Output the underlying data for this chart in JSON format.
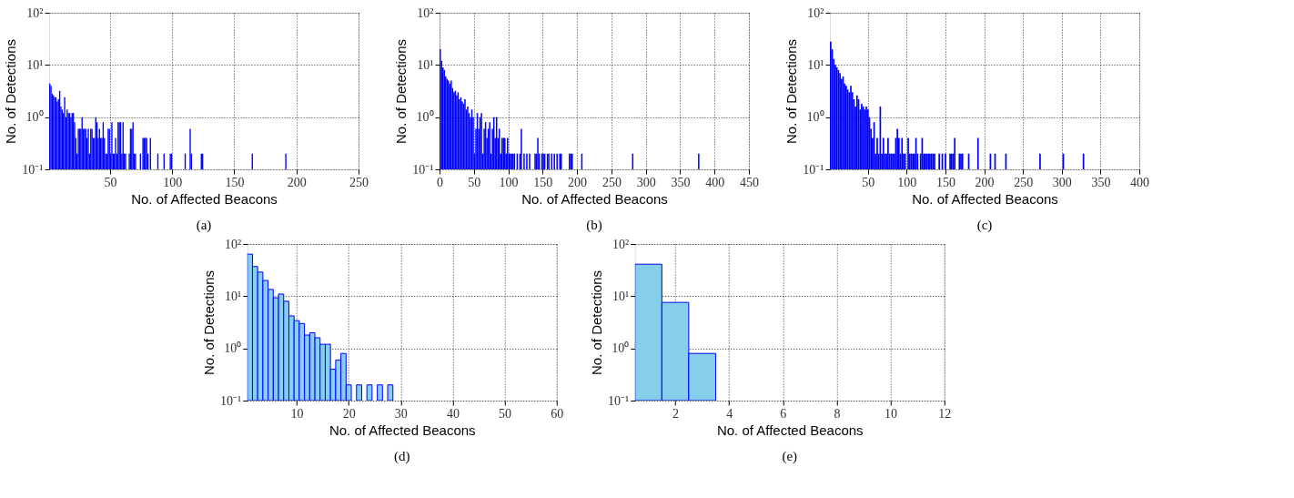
{
  "chart_data": [
    {
      "type": "histogram",
      "title": "(a)",
      "xlabel": "No. of Affected Beacons",
      "ylabel": "No. of Detections",
      "color": "#0000ff",
      "log": true,
      "grid": true,
      "xlim": [
        1,
        250
      ],
      "xticks": [
        50,
        100,
        150,
        200,
        250
      ],
      "ylim": [
        0.1,
        100
      ],
      "yticks": [
        {
          "value": 0.1,
          "label": "10⁻¹"
        },
        {
          "value": 1,
          "label": "10⁰"
        },
        {
          "value": 10,
          "label": "10¹"
        },
        {
          "value": 100,
          "label": "10²"
        }
      ],
      "bins": [
        1,
        2,
        3,
        4,
        5,
        6,
        7,
        8,
        9,
        10,
        11,
        12,
        13,
        14,
        15,
        16,
        17,
        18,
        19,
        20,
        21,
        22,
        23,
        24,
        25,
        26,
        27,
        28,
        29,
        30,
        31,
        32,
        33,
        34,
        35,
        36,
        37,
        38,
        39,
        40,
        41,
        42,
        43,
        44,
        45,
        46,
        47,
        48,
        49,
        50,
        51,
        52,
        53,
        54,
        55,
        56,
        57,
        58,
        59,
        60,
        61,
        62,
        63,
        64,
        65,
        66,
        67,
        68,
        69,
        70,
        71,
        72,
        73,
        74,
        75,
        76,
        77,
        78,
        79,
        80,
        81,
        82,
        83,
        84,
        85,
        86,
        87,
        88,
        89,
        90,
        91,
        92,
        93,
        94,
        95,
        96,
        97,
        98,
        99,
        100,
        101,
        102,
        103,
        104,
        105,
        106,
        107,
        108,
        109,
        110,
        111,
        112,
        113,
        114,
        115,
        116,
        117,
        118,
        119,
        120,
        121,
        122,
        123,
        124,
        125,
        126,
        127,
        128,
        129,
        130,
        131,
        132,
        133,
        134,
        135,
        136,
        137,
        138,
        139,
        140,
        141,
        142,
        143,
        144,
        145,
        146,
        147,
        148,
        149,
        150,
        151,
        152,
        153,
        154,
        155,
        156,
        157,
        158,
        159,
        160,
        161,
        162,
        163,
        164,
        165,
        166,
        167,
        168,
        169,
        170,
        171,
        172,
        173,
        174,
        175,
        176,
        177,
        178,
        179,
        180,
        181,
        182,
        183,
        184,
        185,
        186,
        187,
        188,
        189,
        190,
        191,
        192
      ],
      "values": [
        4.4,
        4.0,
        2.8,
        2.6,
        2.4,
        2.4,
        2.0,
        2.2,
        3.2,
        1.6,
        1.4,
        1.2,
        2.4,
        1.0,
        1.4,
        1.2,
        1.2,
        1.0,
        1.2,
        1.2,
        0.8,
        0.4,
        0.2,
        0.6,
        0.6,
        0.6,
        1.0,
        0.6,
        0.6,
        0.6,
        0.4,
        0.6,
        0.2,
        0.6,
        0.6,
        0.4,
        0.4,
        1.0,
        0.8,
        0.4,
        0.6,
        0.4,
        0.4,
        0.8,
        0.4,
        0.2,
        0.2,
        0.6,
        0.6,
        0.2,
        0.8,
        0.2,
        0.2,
        0.4,
        0.2,
        0.8,
        0.8,
        0.8,
        0.2,
        0.8,
        0.2,
        0.2,
        null,
        null,
        0.2,
        0.6,
        0.6,
        0.8,
        0.2,
        0.2,
        null,
        null,
        null,
        0.2,
        null,
        0.4,
        0.4,
        0.4,
        0.4,
        0.2,
        null,
        0.4,
        null,
        null,
        null,
        null,
        null,
        0.2,
        null,
        null,
        null,
        null,
        0.2,
        null,
        null,
        null,
        null,
        0.2,
        0.2,
        null,
        null,
        null,
        null,
        null,
        null,
        null,
        null,
        null,
        null,
        0.2,
        null,
        null,
        null,
        0.6,
        0.2,
        null,
        null,
        null,
        null,
        null,
        null,
        null,
        0.2,
        0.2,
        null,
        null,
        null,
        null,
        null,
        null,
        null,
        null,
        null,
        null,
        null,
        null,
        null,
        null,
        null,
        null,
        null,
        null,
        null,
        null,
        null,
        null,
        null,
        null,
        null,
        null,
        null,
        null,
        null,
        null,
        null,
        null,
        null,
        null,
        null,
        null,
        null,
        null,
        null,
        0.2,
        null,
        null,
        null,
        null,
        null,
        null,
        null,
        null,
        null,
        null,
        null,
        null,
        null,
        null,
        null,
        null,
        null,
        null,
        null,
        null,
        null,
        null,
        null,
        null,
        null,
        null,
        0.2
      ]
    },
    {
      "type": "histogram",
      "title": "(b)",
      "xlabel": "No. of Affected Beacons",
      "ylabel": "No. of Detections",
      "color": "#0000ff",
      "log": true,
      "grid": true,
      "xlim": [
        0,
        450
      ],
      "xticks": [
        0,
        50,
        100,
        150,
        200,
        250,
        300,
        350,
        400,
        450
      ],
      "ylim": [
        0.1,
        100
      ],
      "yticks": [
        {
          "value": 0.1,
          "label": "10⁻¹"
        },
        {
          "value": 1,
          "label": "10⁰"
        },
        {
          "value": 10,
          "label": "10¹"
        },
        {
          "value": 100,
          "label": "10²"
        }
      ],
      "bins": [
        0,
        2,
        4,
        6,
        8,
        10,
        12,
        14,
        16,
        18,
        20,
        22,
        24,
        26,
        28,
        30,
        32,
        34,
        36,
        38,
        40,
        42,
        44,
        46,
        48,
        50,
        52,
        54,
        56,
        58,
        60,
        62,
        64,
        66,
        68,
        70,
        72,
        74,
        76,
        78,
        80,
        82,
        84,
        86,
        88,
        90,
        92,
        94,
        96,
        98,
        100,
        102,
        104,
        106,
        108,
        110,
        112,
        114,
        116,
        118,
        120,
        122,
        124,
        126,
        128,
        130,
        132,
        134,
        136,
        138,
        140,
        142,
        144,
        146,
        148,
        150,
        152,
        154,
        156,
        158,
        160,
        162,
        164,
        166,
        168,
        170,
        172,
        174,
        176,
        178,
        180,
        182,
        184,
        186,
        188,
        190,
        192,
        194,
        196,
        198,
        200,
        202,
        204,
        206,
        208,
        210,
        212,
        214,
        216,
        218,
        220,
        222,
        224,
        226,
        228,
        230,
        232,
        234,
        236,
        238,
        240,
        242,
        244,
        246,
        248,
        250,
        252,
        254,
        256,
        258,
        260,
        262,
        264,
        266,
        268,
        270,
        272,
        274,
        276,
        278,
        280,
        282,
        284,
        286,
        288,
        290,
        292,
        294,
        296,
        298,
        300,
        302,
        304,
        306,
        308,
        310,
        312,
        314,
        316,
        318,
        320,
        322,
        324,
        326,
        328,
        330,
        332,
        334,
        336,
        338,
        340,
        342,
        344,
        346,
        348,
        350,
        352,
        354,
        356,
        358,
        360,
        362,
        364,
        366,
        368,
        370,
        372,
        374,
        376,
        378,
        380
      ],
      "values": [
        20,
        12,
        9,
        8,
        6,
        5.4,
        5,
        4.4,
        5,
        3.6,
        3,
        3.2,
        2.6,
        3,
        2.2,
        2.4,
        2,
        1.8,
        2.2,
        1.4,
        1.6,
        1.2,
        1,
        1.4,
        1,
        0.2,
        0.6,
        1.2,
        0.6,
        1,
        1.2,
        0.2,
        0.6,
        0.8,
        0.4,
        0.6,
        0.8,
        0.2,
        0.6,
        1,
        0.4,
        1,
        0.4,
        0.6,
        0.2,
        0.4,
        0.4,
        0.4,
        0.2,
        0.4,
        0.2,
        0.2,
        0.2,
        0.2,
        0.2,
        null,
        0.2,
        null,
        0.2,
        0.6,
        null,
        0.2,
        null,
        0.2,
        null,
        0.2,
        null,
        null,
        null,
        0.2,
        0.2,
        0.4,
        0.2,
        null,
        0.2,
        0.2,
        0.2,
        null,
        0.2,
        0.2,
        null,
        0.2,
        null,
        0.2,
        null,
        0.2,
        null,
        0.2,
        0.2,
        null,
        null,
        null,
        null,
        null,
        0.2,
        0.2,
        0.2,
        null,
        null,
        null,
        null,
        null,
        null,
        0.2,
        null,
        null,
        null,
        null,
        null,
        null,
        null,
        null,
        null,
        null,
        null,
        null,
        null,
        null,
        null,
        null,
        null,
        null,
        null,
        null,
        null,
        null,
        null,
        null,
        null,
        null,
        null,
        null,
        null,
        null,
        null,
        null,
        null,
        null,
        null,
        null,
        0.2,
        null,
        null,
        null,
        null,
        null,
        null,
        null,
        null,
        null,
        null,
        null,
        null,
        null,
        null,
        null,
        null,
        null,
        null,
        null,
        null,
        null,
        null,
        null,
        null,
        null,
        null,
        null,
        null,
        null,
        null,
        null,
        null,
        null,
        null,
        null,
        null,
        null,
        null,
        null,
        null,
        null,
        null,
        null,
        null,
        null,
        null,
        null,
        0.2,
        null
      ]
    },
    {
      "type": "histogram",
      "title": "(c)",
      "xlabel": "No. of Affected Beacons",
      "ylabel": "No. of Detections",
      "color": "#0000ff",
      "log": true,
      "grid": true,
      "xlim": [
        1,
        400
      ],
      "xticks": [
        50,
        100,
        150,
        200,
        250,
        300,
        350,
        400
      ],
      "ylim": [
        0.1,
        100
      ],
      "yticks": [
        {
          "value": 0.1,
          "label": "10⁻¹"
        },
        {
          "value": 1,
          "label": "10⁰"
        },
        {
          "value": 10,
          "label": "10¹"
        },
        {
          "value": 100,
          "label": "10²"
        }
      ],
      "bins": [
        1,
        3,
        5,
        7,
        9,
        11,
        13,
        15,
        17,
        19,
        21,
        23,
        25,
        27,
        29,
        31,
        33,
        35,
        37,
        39,
        41,
        43,
        45,
        47,
        49,
        51,
        53,
        55,
        57,
        59,
        61,
        63,
        65,
        67,
        69,
        71,
        73,
        75,
        77,
        79,
        81,
        83,
        85,
        87,
        89,
        91,
        93,
        95,
        97,
        99,
        101,
        103,
        105,
        107,
        109,
        111,
        113,
        115,
        117,
        119,
        121,
        123,
        125,
        127,
        129,
        131,
        133,
        135,
        137,
        139,
        141,
        143,
        145,
        147,
        149,
        151,
        153,
        155,
        157,
        159,
        161,
        163,
        165,
        167,
        169,
        171,
        173,
        175,
        177,
        179,
        181,
        183,
        185,
        187,
        189,
        191,
        193,
        195,
        197,
        199,
        201,
        203,
        205,
        207,
        209,
        211,
        213,
        215,
        217,
        219,
        221,
        223,
        225,
        227,
        229,
        231,
        233,
        235,
        237,
        239,
        241,
        243,
        245,
        247,
        249,
        251,
        253,
        255,
        257,
        259,
        261,
        263,
        265,
        267,
        269,
        271,
        273,
        275,
        277,
        279,
        281,
        283,
        285,
        287,
        289,
        291,
        293,
        295,
        297,
        299,
        301,
        303,
        305,
        307,
        309,
        311,
        313,
        315,
        317,
        319,
        321,
        323,
        325,
        327,
        329,
        331
      ],
      "values": [
        28,
        20,
        13,
        10,
        9,
        8,
        7,
        5.4,
        6,
        4.4,
        4,
        3.4,
        3,
        4,
        3,
        2.2,
        1.6,
        2.6,
        2.2,
        1.4,
        1.8,
        1.6,
        1.4,
        1.6,
        1.4,
        1,
        0.6,
        0.4,
        0.8,
        0.2,
        0.4,
        0.2,
        1.6,
        0.2,
        0.4,
        0.2,
        0.2,
        0.4,
        0.2,
        0.2,
        0.2,
        0.2,
        0.4,
        0.6,
        0.4,
        0.2,
        0.4,
        0.2,
        0.2,
        null,
        0.4,
        0.2,
        0.2,
        0.2,
        0.2,
        0.4,
        0.2,
        null,
        0.2,
        0.4,
        0.2,
        0.2,
        0.2,
        0.2,
        0.2,
        0.2,
        0.2,
        0.2,
        null,
        null,
        0.2,
        null,
        0.2,
        null,
        0.2,
        null,
        null,
        0.2,
        0.2,
        0.2,
        0.4,
        null,
        null,
        0.2,
        0.2,
        0.2,
        null,
        null,
        null,
        0.2,
        null,
        null,
        null,
        null,
        null,
        0.4,
        null,
        null,
        null,
        null,
        null,
        null,
        null,
        0.2,
        null,
        null,
        0.2,
        null,
        null,
        null,
        null,
        null,
        null,
        0.2,
        null,
        null,
        null,
        null,
        null,
        null,
        null,
        null,
        null,
        null,
        null,
        null,
        null,
        null,
        null,
        null,
        null,
        null,
        null,
        null,
        null,
        0.2,
        null,
        null,
        null,
        null,
        null,
        null,
        null,
        null,
        null,
        null,
        null,
        null,
        null,
        null,
        0.2,
        null,
        null,
        null,
        null,
        null,
        null,
        null,
        null,
        null,
        null,
        null,
        null,
        0.2,
        null
      ]
    },
    {
      "type": "histogram",
      "title": "(d)",
      "xlabel": "No. of Affected Beacons",
      "ylabel": "No. of Detections",
      "color": "#87ceeb",
      "log": true,
      "grid": true,
      "xlim": [
        0.5,
        60
      ],
      "xticks": [
        10,
        20,
        30,
        40,
        50,
        60
      ],
      "ylim": [
        0.1,
        100
      ],
      "yticks": [
        {
          "value": 0.1,
          "label": "10⁻¹"
        },
        {
          "value": 1,
          "label": "10⁰"
        },
        {
          "value": 10,
          "label": "10¹"
        },
        {
          "value": 100,
          "label": "10²"
        }
      ],
      "bins": [
        0.5,
        1.5,
        2.5,
        3.5,
        4.5,
        5.5,
        6.5,
        7.5,
        8.5,
        9.5,
        10.5,
        11.5,
        12.5,
        13.5,
        14.5,
        15.5,
        16.5,
        17.5,
        18.5,
        19.5,
        20.5,
        21.5,
        22.5,
        23.5,
        24.5,
        25.5,
        26.5,
        27.5,
        28.5
      ],
      "values": [
        64,
        37,
        29,
        20,
        13.5,
        9.3,
        11,
        8,
        4.2,
        3.4,
        3,
        1.8,
        2,
        1.6,
        1.2,
        1.2,
        0.4,
        0.6,
        0.8,
        0.2,
        null,
        0.2,
        null,
        0.2,
        null,
        0.2,
        null,
        0.2
      ]
    },
    {
      "type": "histogram",
      "title": "(e)",
      "xlabel": "No. of Affected Beacons",
      "ylabel": "No. of Detections",
      "color": "#87ceeb",
      "log": true,
      "grid": true,
      "xlim": [
        0.5,
        12
      ],
      "xticks": [
        2,
        4,
        6,
        8,
        10,
        12
      ],
      "ylim": [
        0.1,
        100
      ],
      "yticks": [
        {
          "value": 0.1,
          "label": "10⁻¹"
        },
        {
          "value": 1,
          "label": "10⁰"
        },
        {
          "value": 10,
          "label": "10¹"
        },
        {
          "value": 100,
          "label": "10²"
        }
      ],
      "bins": [
        0.5,
        1.5,
        2.5,
        3.5
      ],
      "values": [
        41,
        7.6,
        0.8
      ]
    }
  ]
}
